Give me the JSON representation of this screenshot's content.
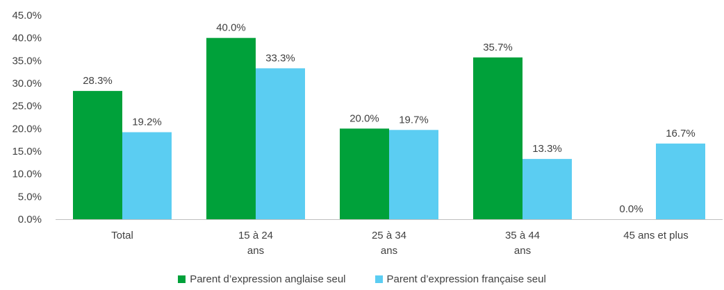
{
  "chart_data": {
    "type": "bar",
    "categories": [
      [
        "Total"
      ],
      [
        "15 à 24",
        "ans"
      ],
      [
        "25 à 34",
        "ans"
      ],
      [
        "35 à 44",
        "ans"
      ],
      [
        "45 ans et plus"
      ]
    ],
    "series": [
      {
        "name": "Parent d’expression anglaise seul",
        "color": "#00A13A",
        "values": [
          28.3,
          40.0,
          20.0,
          35.7,
          0.0
        ],
        "labels": [
          "28.3%",
          "40.0%",
          "20.0%",
          "35.7%",
          "0.0%"
        ]
      },
      {
        "name": "Parent d’expression française seul",
        "color": "#5BCDF2",
        "values": [
          19.2,
          33.3,
          19.7,
          13.3,
          16.7
        ],
        "labels": [
          "19.2%",
          "33.3%",
          "19.7%",
          "13.3%",
          "16.7%"
        ]
      }
    ],
    "ylim": [
      0,
      45
    ],
    "yticks": [
      "0.0%",
      "5.0%",
      "10.0%",
      "15.0%",
      "20.0%",
      "25.0%",
      "30.0%",
      "35.0%",
      "40.0%",
      "45.0%"
    ],
    "legend_position": "bottom",
    "grid": false
  }
}
